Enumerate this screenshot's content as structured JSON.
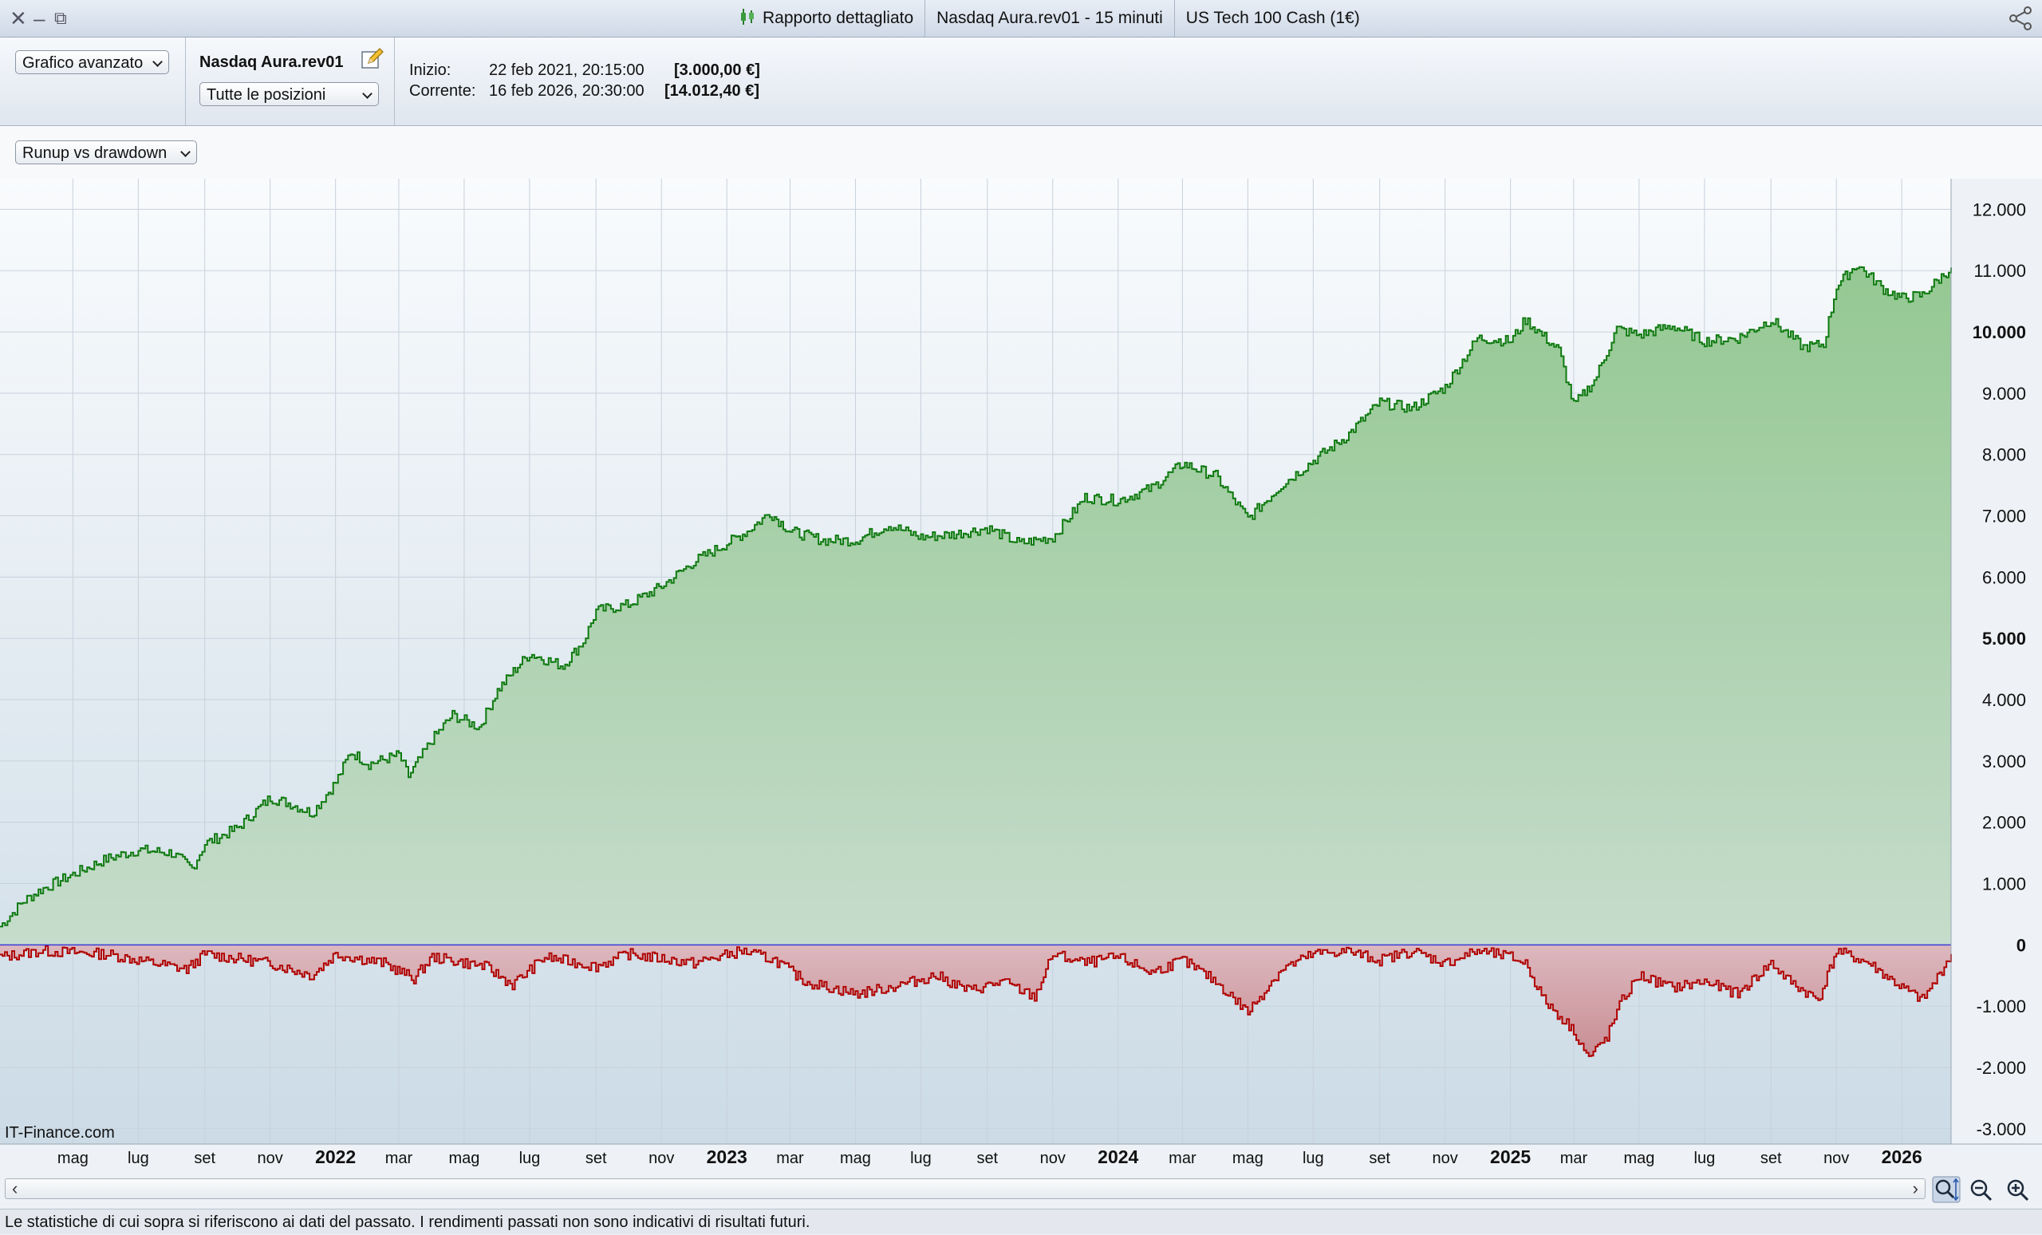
{
  "window": {
    "tabs": [
      "Rapporto dettagliato",
      "Nasdaq Aura.rev01 - 15 minuti",
      "US Tech 100 Cash (1€)"
    ]
  },
  "header": {
    "view_select": "Grafico avanzato",
    "system_name": "Nasdaq Aura.rev01",
    "positions_select": "Tutte le posizioni",
    "start_label": "Inizio:",
    "start_date": "22 feb 2021, 20:15:00",
    "start_value": "[3.000,00 €]",
    "current_label": "Corrente:",
    "current_date": "16 feb 2026, 20:30:00",
    "current_value": "[14.012,40 €]"
  },
  "chart_select": "Runup vs drawdown",
  "watermark": "IT-Finance.com",
  "footer_text": "Le statistiche di cui sopra si riferiscono ai dati del passato. I rendimenti passati non sono indicativi di risultati futuri.",
  "colors": {
    "runup": "#0f7a10",
    "drawdown": "#b00000",
    "zero_line": "#3b3bd9"
  },
  "chart_data": {
    "type": "area",
    "title": "Runup vs drawdown",
    "xlabel": "",
    "ylabel": "",
    "x_range": [
      "2021-02-22",
      "2026-02-16"
    ],
    "ylim": [
      -3250,
      12500
    ],
    "y_ticks": [
      12000,
      11000,
      10000,
      9000,
      8000,
      7000,
      6000,
      5000,
      4000,
      3000,
      2000,
      1000,
      0,
      -1000,
      -2000,
      -3000
    ],
    "y_tick_labels": [
      "12.000",
      "11.000",
      "10.000",
      "9.000",
      "8.000",
      "7.000",
      "6.000",
      "5.000",
      "4.000",
      "3.000",
      "2.000",
      "1.000",
      "0",
      "-1.000",
      "-2.000",
      "-3.000"
    ],
    "bold_y_ticks": [
      "10.000",
      "5.000",
      "0"
    ],
    "x_ticks": [
      {
        "date": "2021-05-01",
        "label": "mag",
        "year": false
      },
      {
        "date": "2021-07-01",
        "label": "lug",
        "year": false
      },
      {
        "date": "2021-09-01",
        "label": "set",
        "year": false
      },
      {
        "date": "2021-11-01",
        "label": "nov",
        "year": false
      },
      {
        "date": "2022-01-01",
        "label": "2022",
        "year": true
      },
      {
        "date": "2022-03-01",
        "label": "mar",
        "year": false
      },
      {
        "date": "2022-05-01",
        "label": "mag",
        "year": false
      },
      {
        "date": "2022-07-01",
        "label": "lug",
        "year": false
      },
      {
        "date": "2022-09-01",
        "label": "set",
        "year": false
      },
      {
        "date": "2022-11-01",
        "label": "nov",
        "year": false
      },
      {
        "date": "2023-01-01",
        "label": "2023",
        "year": true
      },
      {
        "date": "2023-03-01",
        "label": "mar",
        "year": false
      },
      {
        "date": "2023-05-01",
        "label": "mag",
        "year": false
      },
      {
        "date": "2023-07-01",
        "label": "lug",
        "year": false
      },
      {
        "date": "2023-09-01",
        "label": "set",
        "year": false
      },
      {
        "date": "2023-11-01",
        "label": "nov",
        "year": false
      },
      {
        "date": "2024-01-01",
        "label": "2024",
        "year": true
      },
      {
        "date": "2024-03-01",
        "label": "mar",
        "year": false
      },
      {
        "date": "2024-05-01",
        "label": "mag",
        "year": false
      },
      {
        "date": "2024-07-01",
        "label": "lug",
        "year": false
      },
      {
        "date": "2024-09-01",
        "label": "set",
        "year": false
      },
      {
        "date": "2024-11-01",
        "label": "nov",
        "year": false
      },
      {
        "date": "2025-01-01",
        "label": "2025",
        "year": true
      },
      {
        "date": "2025-03-01",
        "label": "mar",
        "year": false
      },
      {
        "date": "2025-05-01",
        "label": "mag",
        "year": false
      },
      {
        "date": "2025-07-01",
        "label": "lug",
        "year": false
      },
      {
        "date": "2025-09-01",
        "label": "set",
        "year": false
      },
      {
        "date": "2025-11-01",
        "label": "nov",
        "year": false
      },
      {
        "date": "2026-01-01",
        "label": "2026",
        "year": true
      }
    ],
    "grid": true,
    "series": [
      {
        "key": "runup",
        "x": [
          "2021-02-22",
          "2021-03-15",
          "2021-04-01",
          "2021-05-01",
          "2021-06-01",
          "2021-07-01",
          "2021-08-01",
          "2021-08-20",
          "2021-09-01",
          "2021-10-01",
          "2021-11-01",
          "2021-11-20",
          "2021-12-10",
          "2022-01-01",
          "2022-01-15",
          "2022-02-01",
          "2022-03-01",
          "2022-03-10",
          "2022-04-01",
          "2022-04-20",
          "2022-05-15",
          "2022-06-01",
          "2022-06-20",
          "2022-07-01",
          "2022-08-01",
          "2022-08-20",
          "2022-09-01",
          "2022-10-01",
          "2022-11-01",
          "2022-12-01",
          "2023-01-01",
          "2023-01-20",
          "2023-02-10",
          "2023-03-01",
          "2023-04-01",
          "2023-05-01",
          "2023-06-01",
          "2023-07-01",
          "2023-08-01",
          "2023-09-01",
          "2023-10-01",
          "2023-11-01",
          "2023-12-01",
          "2024-01-01",
          "2024-02-01",
          "2024-03-01",
          "2024-04-01",
          "2024-05-01",
          "2024-06-01",
          "2024-07-01",
          "2024-08-01",
          "2024-09-01",
          "2024-10-01",
          "2024-11-01",
          "2024-12-01",
          "2025-01-01",
          "2025-01-15",
          "2025-02-15",
          "2025-03-01",
          "2025-03-20",
          "2025-04-10",
          "2025-05-01",
          "2025-06-01",
          "2025-07-01",
          "2025-08-01",
          "2025-09-01",
          "2025-10-01",
          "2025-10-20",
          "2025-11-01",
          "2025-11-20",
          "2025-12-15",
          "2026-01-01",
          "2026-01-20",
          "2026-02-16"
        ],
        "y": [
          300,
          700,
          900,
          1150,
          1400,
          1550,
          1500,
          1250,
          1650,
          1900,
          2400,
          2300,
          2150,
          2650,
          3150,
          2950,
          3100,
          2750,
          3350,
          3750,
          3550,
          4150,
          4550,
          4750,
          4550,
          4950,
          5450,
          5550,
          5850,
          6250,
          6550,
          6750,
          7050,
          6750,
          6600,
          6600,
          6850,
          6650,
          6700,
          6800,
          6550,
          6650,
          7300,
          7250,
          7450,
          7850,
          7650,
          6950,
          7500,
          7900,
          8300,
          8850,
          8750,
          9100,
          9900,
          9850,
          10200,
          9700,
          8800,
          9200,
          10050,
          9950,
          10100,
          9850,
          9900,
          10200,
          9750,
          9800,
          10750,
          11100,
          10700,
          10550,
          10600,
          11050
        ]
      },
      {
        "key": "drawdown",
        "x": [
          "2021-02-22",
          "2021-04-01",
          "2021-06-01",
          "2021-08-15",
          "2021-09-01",
          "2021-11-01",
          "2021-12-10",
          "2022-01-01",
          "2022-02-15",
          "2022-03-15",
          "2022-04-01",
          "2022-05-20",
          "2022-06-15",
          "2022-07-15",
          "2022-09-01",
          "2022-10-01",
          "2022-12-01",
          "2023-01-15",
          "2023-02-15",
          "2023-03-15",
          "2023-05-01",
          "2023-06-01",
          "2023-07-15",
          "2023-08-15",
          "2023-09-15",
          "2023-10-15",
          "2023-11-01",
          "2023-12-01",
          "2024-01-01",
          "2024-02-01",
          "2024-03-01",
          "2024-04-01",
          "2024-05-01",
          "2024-06-01",
          "2024-07-01",
          "2024-08-01",
          "2024-09-01",
          "2024-10-01",
          "2024-11-01",
          "2024-12-01",
          "2025-01-01",
          "2025-01-15",
          "2025-02-01",
          "2025-03-01",
          "2025-03-15",
          "2025-04-01",
          "2025-04-15",
          "2025-05-01",
          "2025-06-01",
          "2025-07-01",
          "2025-08-01",
          "2025-09-01",
          "2025-09-15",
          "2025-10-01",
          "2025-10-15",
          "2025-11-01",
          "2025-12-01",
          "2026-01-01",
          "2026-01-20",
          "2026-02-01",
          "2026-02-16"
        ],
        "y": [
          -200,
          -100,
          -150,
          -400,
          -150,
          -300,
          -500,
          -150,
          -300,
          -550,
          -200,
          -350,
          -650,
          -200,
          -350,
          -150,
          -300,
          -100,
          -250,
          -600,
          -800,
          -700,
          -500,
          -750,
          -600,
          -850,
          -150,
          -300,
          -200,
          -450,
          -250,
          -600,
          -1100,
          -400,
          -150,
          -100,
          -250,
          -100,
          -300,
          -100,
          -200,
          -300,
          -900,
          -1400,
          -1850,
          -1500,
          -900,
          -500,
          -700,
          -600,
          -800,
          -300,
          -550,
          -750,
          -900,
          -100,
          -300,
          -700,
          -900,
          -600,
          -150
        ]
      }
    ]
  }
}
